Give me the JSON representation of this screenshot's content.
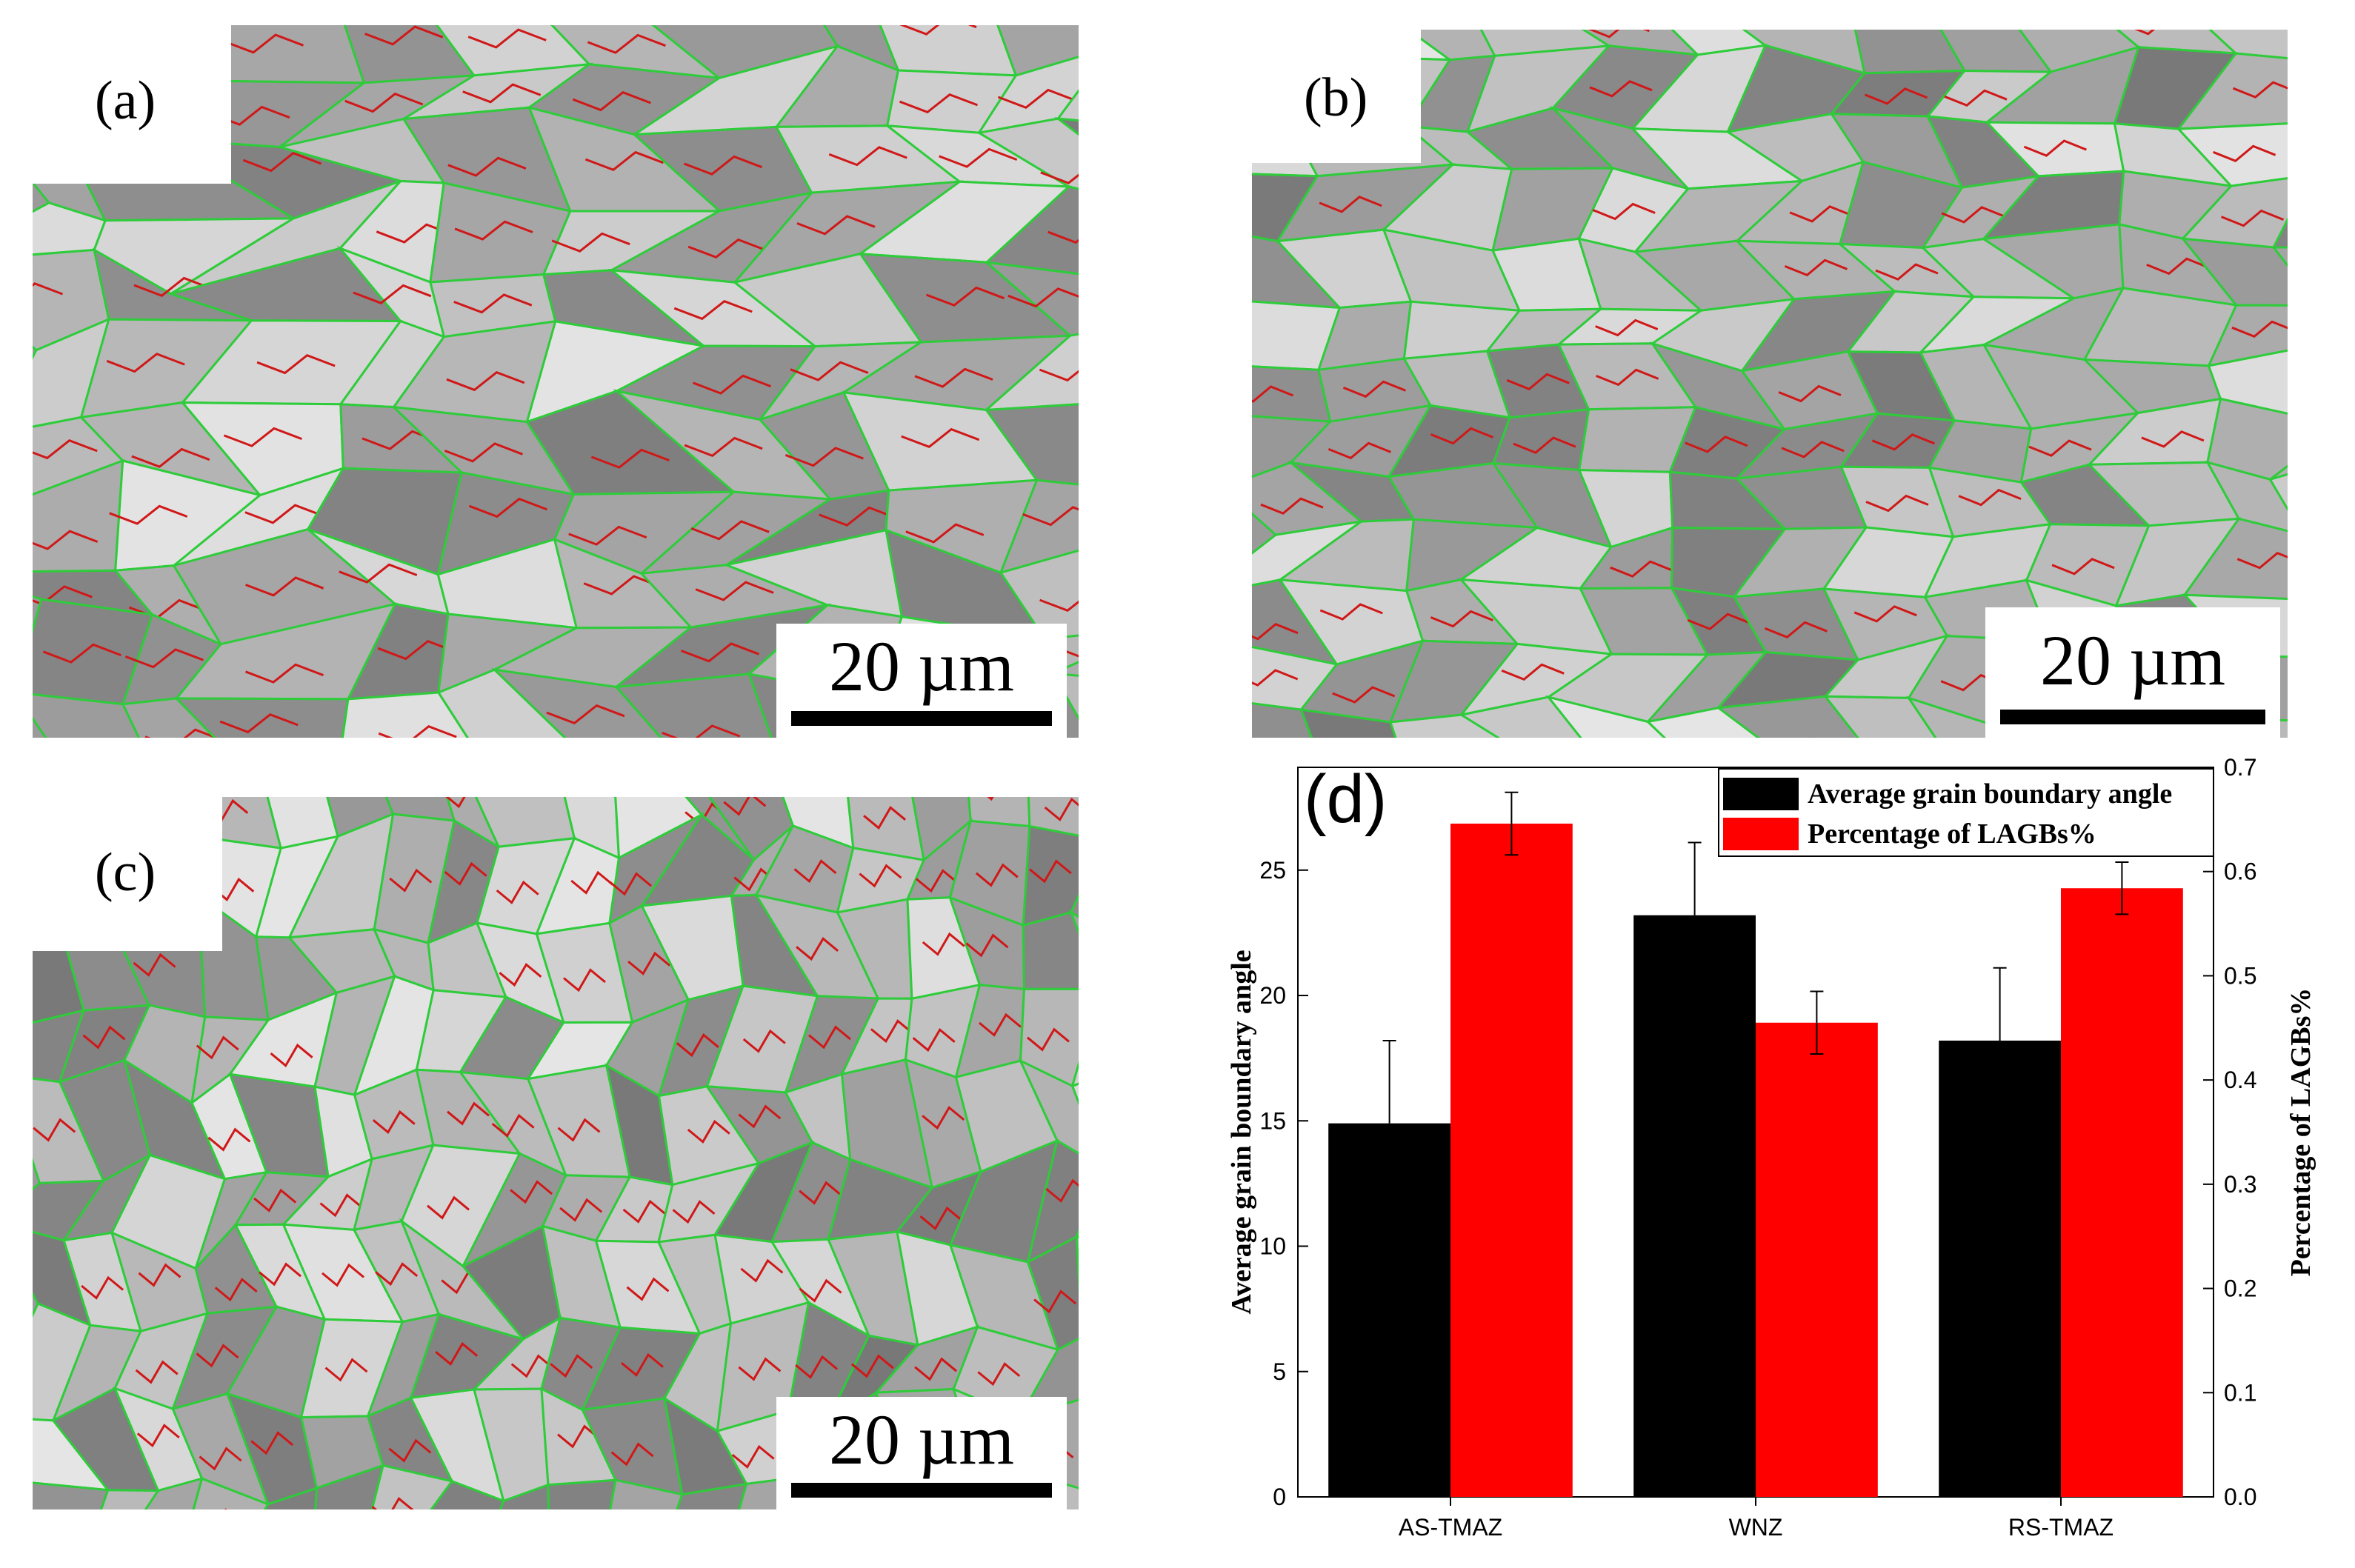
{
  "panels": {
    "a": {
      "label": "(a)",
      "scale_label": "20 µm"
    },
    "b": {
      "label": "(b)",
      "scale_label": "20 µm"
    },
    "c": {
      "label": "(c)",
      "scale_label": "20 µm"
    }
  },
  "colors": {
    "hagb_boundary": "#2ecc3a",
    "lagb_boundary": "#d01818",
    "series_angle": "#000000",
    "series_lagb": "#ff0000"
  },
  "chart_data": {
    "panel_label": "(d)",
    "type": "bar",
    "categories": [
      "AS-TMAZ",
      "WNZ",
      "RS-TMAZ"
    ],
    "series": [
      {
        "name": "Average grain boundary angle",
        "axis": "left",
        "values": [
          14.9,
          23.2,
          18.2
        ],
        "errors": [
          3.3,
          2.9,
          2.9
        ],
        "color": "#000000"
      },
      {
        "name": "Percentage of LAGBs%",
        "axis": "right",
        "values": [
          0.646,
          0.455,
          0.584
        ],
        "errors": [
          0.03,
          0.03,
          0.025
        ],
        "color": "#ff0000"
      }
    ],
    "ylabel": "Average grain boundary angle",
    "y2label": "Percentage of LAGBs%",
    "ylim": [
      0,
      29.1
    ],
    "y2lim": [
      0,
      0.7
    ],
    "yticks": [
      "0",
      "5",
      "10",
      "15",
      "20",
      "25"
    ],
    "y2ticks": [
      "0.0",
      "0.1",
      "0.2",
      "0.3",
      "0.4",
      "0.5",
      "0.6",
      "0.7"
    ],
    "legend_position": "top-right",
    "grid": false
  }
}
